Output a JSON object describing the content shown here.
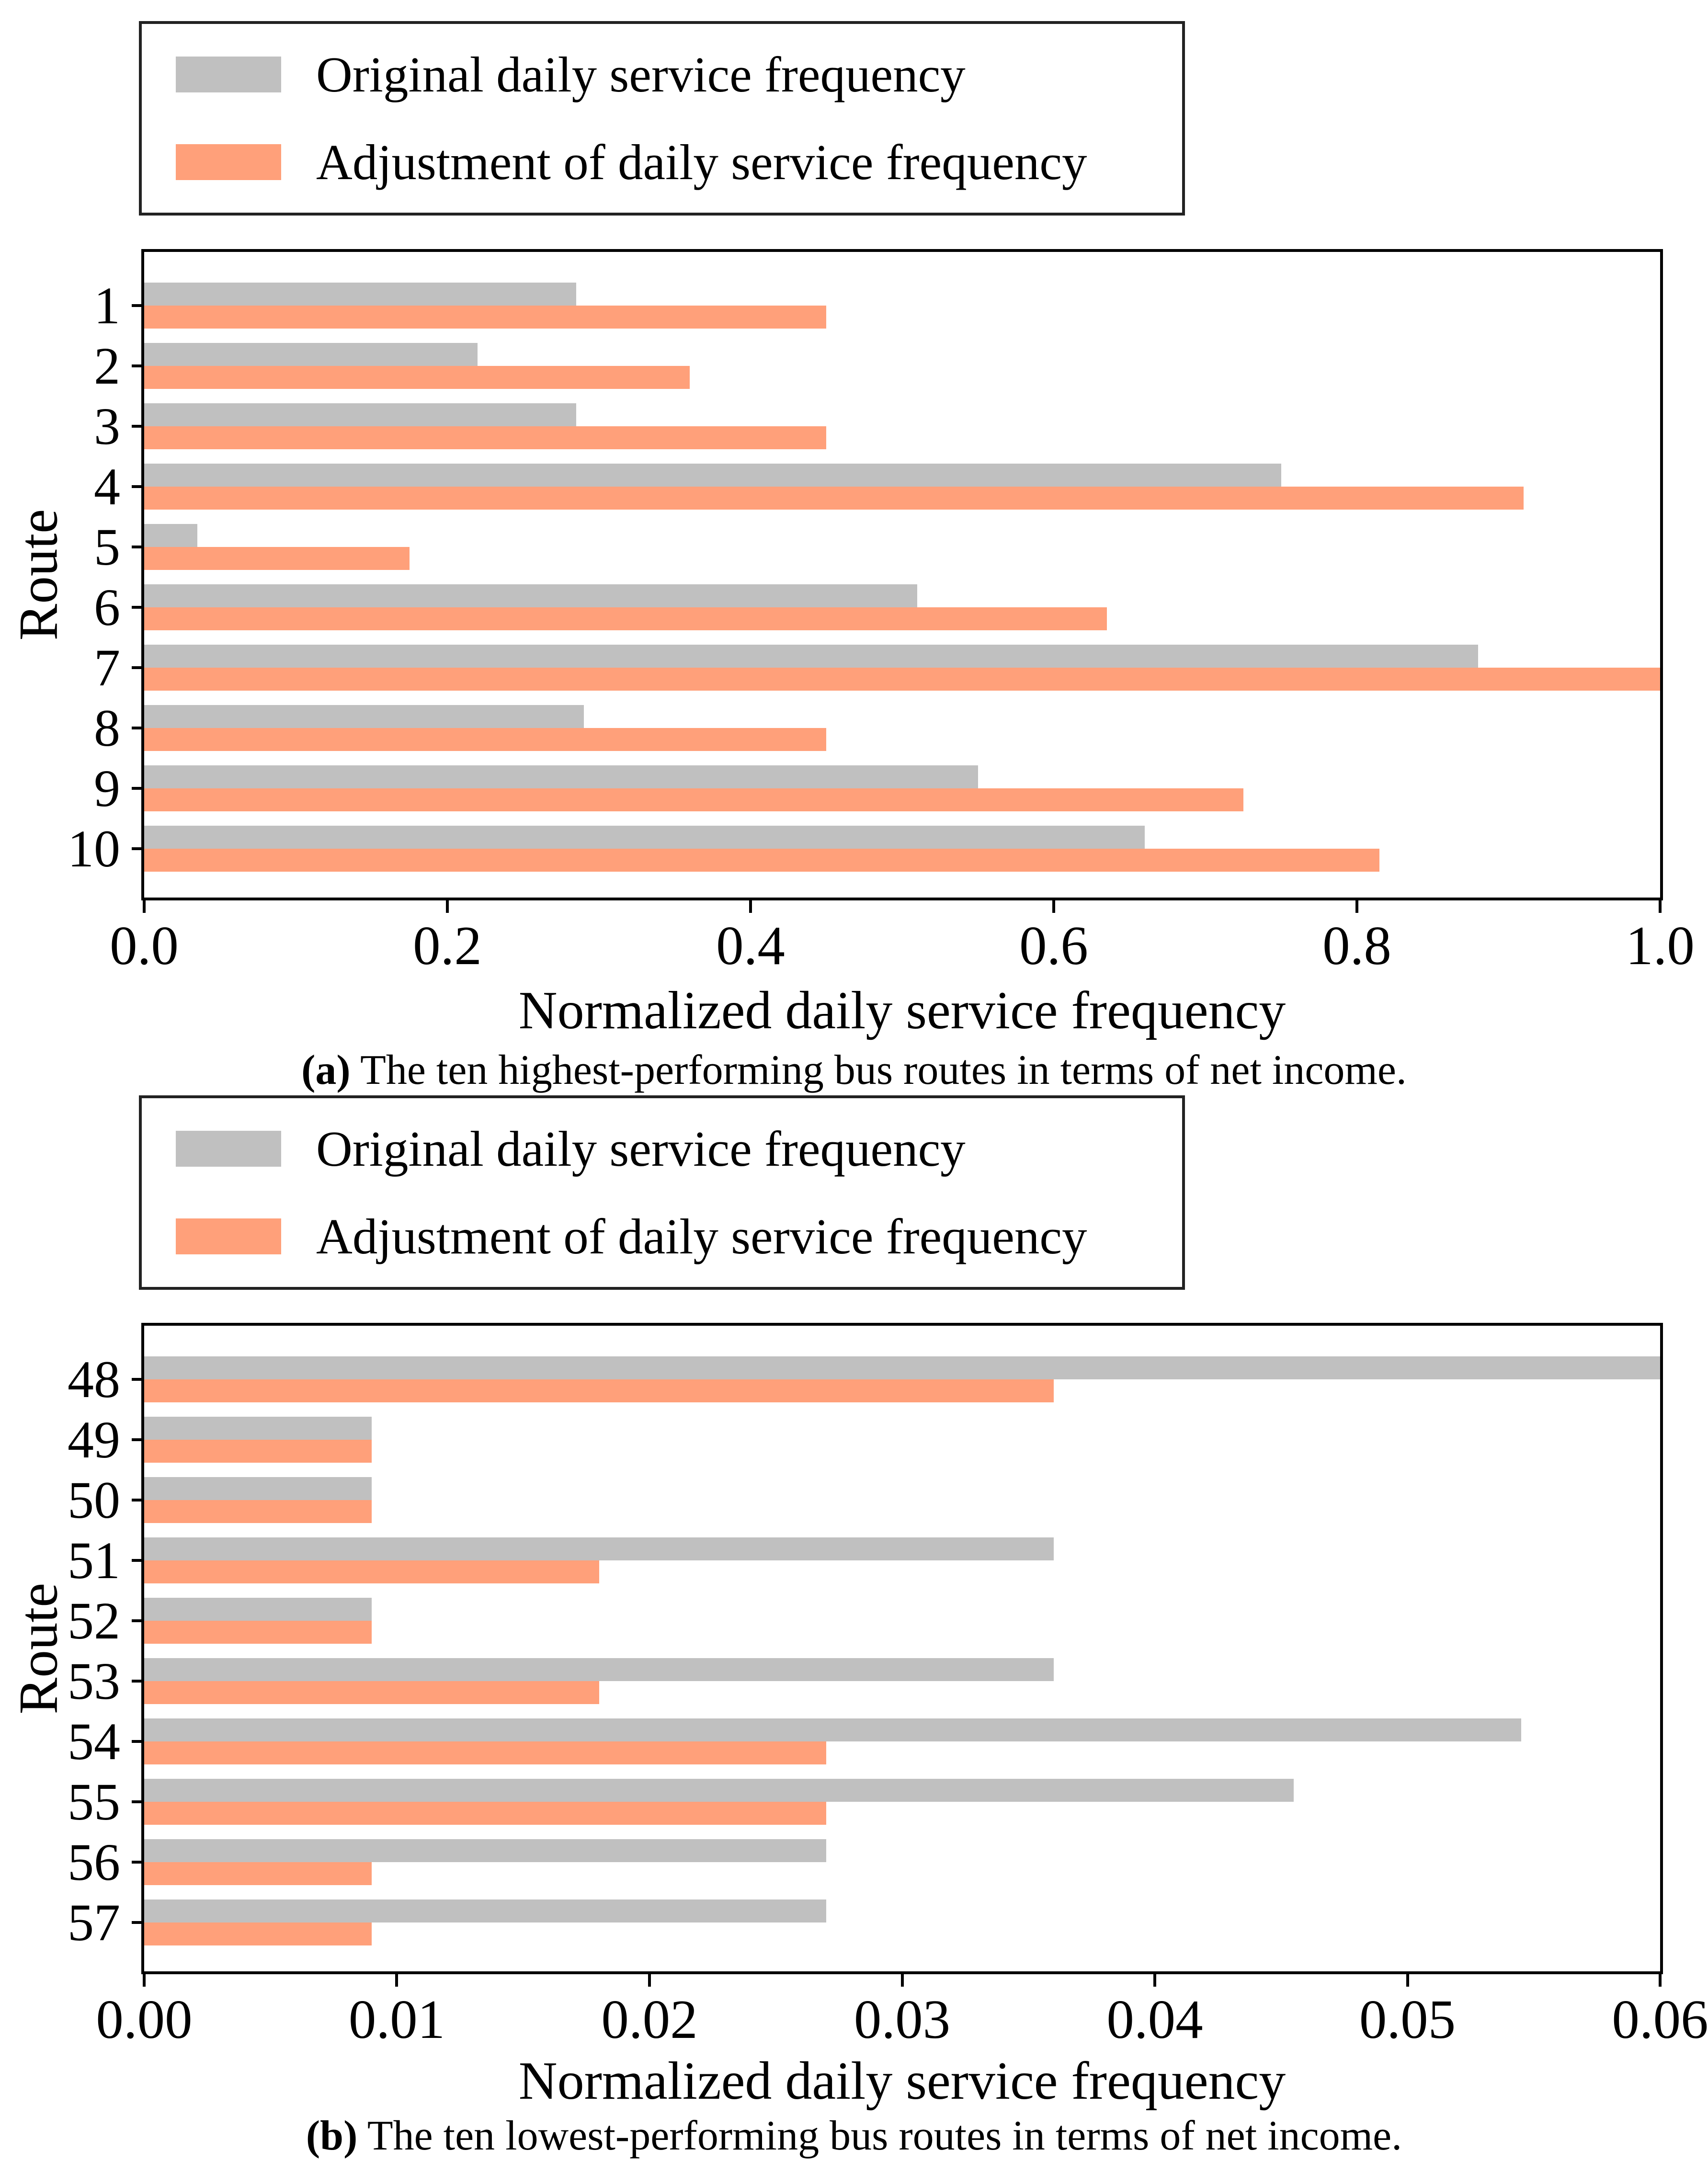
{
  "colors": {
    "original": "#c0c0c0",
    "adjustment": "#ffa07a",
    "axis": "#000000",
    "legend_border": "#222222"
  },
  "chart_data": [
    {
      "type": "bar",
      "orientation": "horizontal",
      "xlabel": "Normalized daily service frequency",
      "ylabel": "Route",
      "categories": [
        "1",
        "2",
        "3",
        "4",
        "5",
        "6",
        "7",
        "8",
        "9",
        "10"
      ],
      "series": [
        {
          "name": "Original daily service frequency",
          "color": "#c0c0c0",
          "values": [
            0.285,
            0.22,
            0.285,
            0.75,
            0.035,
            0.51,
            0.88,
            0.29,
            0.55,
            0.66
          ]
        },
        {
          "name": "Adjustment of daily service frequency",
          "color": "#ffa07a",
          "values": [
            0.45,
            0.36,
            0.45,
            0.91,
            0.175,
            0.635,
            1.0,
            0.45,
            0.725,
            0.815
          ]
        }
      ],
      "xlim": [
        0,
        1.0
      ],
      "xticks": [
        "0.0",
        "0.2",
        "0.4",
        "0.6",
        "0.8",
        "1.0"
      ],
      "grid": false,
      "legend_position": "above-left",
      "caption_label": "(a)",
      "caption_text": " The ten highest-performing bus routes in terms of net income."
    },
    {
      "type": "bar",
      "orientation": "horizontal",
      "xlabel": "Normalized daily service frequency",
      "ylabel": "Route",
      "categories": [
        "48",
        "49",
        "50",
        "51",
        "52",
        "53",
        "54",
        "55",
        "56",
        "57"
      ],
      "series": [
        {
          "name": "Original daily service frequency",
          "color": "#c0c0c0",
          "values": [
            0.06,
            0.009,
            0.009,
            0.036,
            0.009,
            0.036,
            0.0545,
            0.0455,
            0.027,
            0.027
          ]
        },
        {
          "name": "Adjustment of daily service frequency",
          "color": "#ffa07a",
          "values": [
            0.036,
            0.009,
            0.009,
            0.018,
            0.009,
            0.018,
            0.027,
            0.027,
            0.009,
            0.009
          ]
        }
      ],
      "xlim": [
        0,
        0.06
      ],
      "xticks": [
        "0.00",
        "0.01",
        "0.02",
        "0.03",
        "0.04",
        "0.05",
        "0.06"
      ],
      "grid": false,
      "legend_position": "above-left",
      "caption_label": "(b)",
      "caption_text": " The ten lowest-performing bus routes in terms of net income."
    }
  ]
}
